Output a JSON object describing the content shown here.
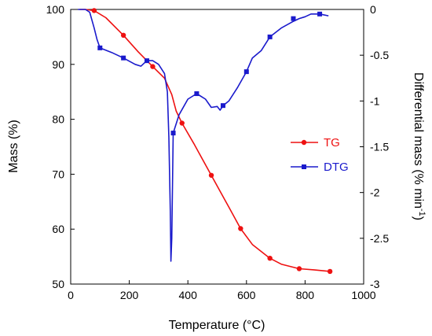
{
  "chart_data": {
    "type": "line",
    "title": "",
    "xlabel": "Temperature (°C)",
    "ylabel": "Mass (%)",
    "y2label_main": "Differential mass (% min",
    "y2label_sup": "-1",
    "y2label_end": ")",
    "xlim": [
      0,
      1000
    ],
    "ylim": [
      50,
      100
    ],
    "y2lim": [
      -3,
      0
    ],
    "xticks": [
      0,
      200,
      400,
      600,
      800,
      1000
    ],
    "yticks": [
      50,
      60,
      70,
      80,
      90,
      100
    ],
    "y2ticks": [
      0,
      -0.5,
      -1,
      -1.5,
      -2,
      -2.5,
      -3
    ],
    "grid": false,
    "legend_position": "right",
    "series": [
      {
        "name": "TG",
        "axis": "left",
        "color": "#ee1111",
        "marker": "circle",
        "x": [
          30,
          50,
          80,
          120,
          180,
          230,
          280,
          320,
          345,
          360,
          380,
          420,
          480,
          540,
          580,
          620,
          680,
          720,
          780,
          830,
          885
        ],
        "y": [
          100,
          100,
          99.8,
          98.5,
          95.3,
          92.3,
          89.6,
          87.5,
          84.5,
          81.5,
          79.3,
          75.6,
          69.8,
          64,
          60.1,
          57.2,
          54.7,
          53.6,
          52.8,
          52.6,
          52.3
        ],
        "marker_x": [
          80,
          180,
          280,
          380,
          480,
          580,
          680,
          780,
          885
        ],
        "marker_y": [
          99.8,
          95.3,
          89.6,
          79.3,
          69.8,
          60.1,
          54.7,
          52.8,
          52.3
        ]
      },
      {
        "name": "DTG",
        "axis": "right",
        "color": "#1a1acc",
        "marker": "square",
        "x": [
          25,
          50,
          65,
          80,
          90,
          100,
          140,
          180,
          220,
          240,
          260,
          280,
          300,
          320,
          330,
          335,
          340,
          342,
          345,
          350,
          355,
          370,
          400,
          430,
          460,
          480,
          500,
          510,
          520,
          540,
          570,
          600,
          620,
          650,
          680,
          720,
          760,
          780,
          800,
          820,
          850,
          880
        ],
        "y": [
          0,
          0,
          -0.03,
          -0.2,
          -0.33,
          -0.42,
          -0.47,
          -0.53,
          -0.6,
          -0.62,
          -0.56,
          -0.56,
          -0.6,
          -0.7,
          -0.9,
          -1.4,
          -2.2,
          -2.75,
          -2.5,
          -1.35,
          -1.3,
          -1.15,
          -0.98,
          -0.92,
          -0.98,
          -1.07,
          -1.06,
          -1.1,
          -1.05,
          -1,
          -0.85,
          -0.68,
          -0.53,
          -0.45,
          -0.3,
          -0.2,
          -0.13,
          -0.1,
          -0.08,
          -0.05,
          -0.05,
          -0.07
        ],
        "marker_x": [
          100,
          180,
          260,
          350,
          430,
          520,
          600,
          680,
          760,
          850
        ],
        "marker_y": [
          -0.42,
          -0.53,
          -0.56,
          -1.35,
          -0.92,
          -1.05,
          -0.68,
          -0.3,
          -0.1,
          -0.05
        ]
      }
    ]
  }
}
